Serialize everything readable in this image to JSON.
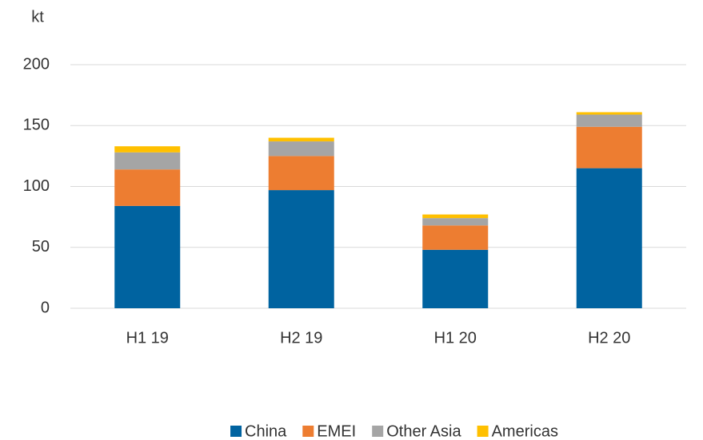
{
  "chart_data": {
    "type": "stacked_bar",
    "y_label": "kt",
    "categories": [
      "H1 19",
      "H2 19",
      "H1 20",
      "H2 20"
    ],
    "series": [
      {
        "name": "China",
        "color": "#0063a0",
        "values": [
          84,
          97,
          48,
          115
        ]
      },
      {
        "name": "EMEI",
        "color": "#ed7d31",
        "values": [
          30,
          28,
          20,
          34
        ]
      },
      {
        "name": "Other Asia",
        "color": "#a5a5a5",
        "values": [
          14,
          12,
          6,
          10
        ]
      },
      {
        "name": "Americas",
        "color": "#ffc000",
        "values": [
          5,
          3,
          3,
          2
        ]
      }
    ],
    "ylim": [
      0,
      200
    ],
    "yticks": [
      0,
      50,
      100,
      150,
      200
    ],
    "grid": true,
    "legend": "bottom"
  }
}
